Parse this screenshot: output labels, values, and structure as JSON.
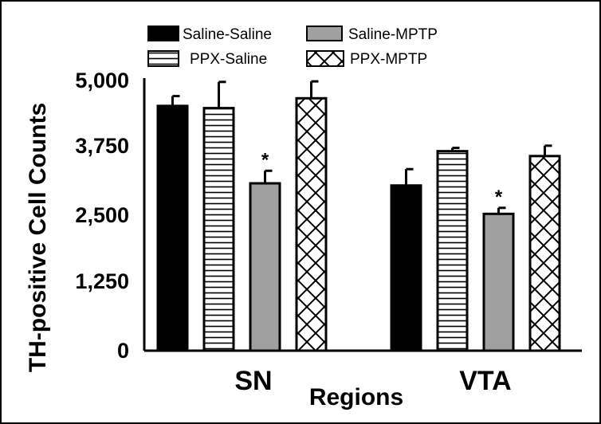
{
  "chart_data": {
    "type": "bar",
    "title": "",
    "xlabel": "Regions",
    "ylabel": "TH-positive Cell Counts",
    "categories": [
      "SN",
      "VTA"
    ],
    "yticks": [
      "0",
      "1,250",
      "2,500",
      "3,750",
      "5,000"
    ],
    "ylim": [
      0,
      5000
    ],
    "grid": false,
    "legend_position": "top",
    "series": [
      {
        "name": "Saline-Saline",
        "pattern": "solid-black",
        "values": [
          4490,
          3030
        ],
        "errors": [
          180,
          300
        ]
      },
      {
        "name": "PPX-Saline",
        "pattern": "horizontal-stripes",
        "values": [
          4450,
          3660
        ],
        "errors": [
          480,
          60
        ]
      },
      {
        "name": "Saline-MPTP",
        "pattern": "solid-gray",
        "values": [
          3070,
          2510
        ],
        "errors": [
          230,
          110
        ]
      },
      {
        "name": "PPX-MPTP",
        "pattern": "crosshatch",
        "values": [
          4630,
          3570
        ],
        "errors": [
          310,
          190
        ]
      }
    ],
    "annotations": [
      {
        "series": "Saline-MPTP",
        "category": "SN",
        "text": "*"
      },
      {
        "series": "Saline-MPTP",
        "category": "VTA",
        "text": "*"
      }
    ]
  },
  "colors": {
    "black": "#000000",
    "gray": "#a0a0a0",
    "white": "#ffffff"
  }
}
